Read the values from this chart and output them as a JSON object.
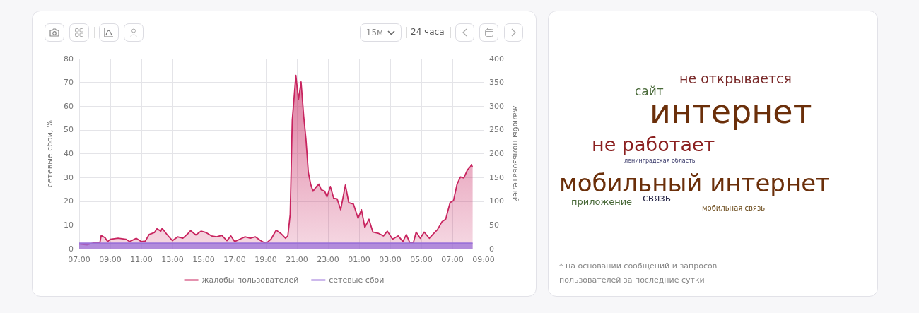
{
  "chart_data": [
    {
      "type": "area",
      "ylabel": "сетевые сбои, %",
      "y2label": "жалобы пользователей",
      "annotations": [
        "15м",
        "24 часа"
      ],
      "xlim": [
        "--01-01T07:00",
        "--01-02T09:00"
      ],
      "xticks": [
        {
          "value": "--01-01T07:00",
          "label": "07:00"
        },
        {
          "value": "--01-01T09:00",
          "label": "09:00"
        },
        {
          "value": "--01-01T11:00",
          "label": "11:00"
        },
        {
          "value": "--01-01T13:00",
          "label": "13:00"
        },
        {
          "value": "--01-01T15:00",
          "label": "15:00"
        },
        {
          "value": "--01-01T17:00",
          "label": "17:00"
        },
        {
          "value": "--01-01T19:00",
          "label": "19:00"
        },
        {
          "value": "--01-01T21:00",
          "label": "21:00"
        },
        {
          "value": "--01-01T23:00",
          "label": "23:00"
        },
        {
          "value": "--01-02T01:00",
          "label": "01:00"
        },
        {
          "value": "--01-02T03:00",
          "label": "03:00"
        },
        {
          "value": "--01-02T05:00",
          "label": "05:00"
        },
        {
          "value": "--01-02T07:00",
          "label": "07:00"
        },
        {
          "value": "--01-02T09:00",
          "label": "09:00"
        }
      ],
      "ylim": [
        0,
        80
      ],
      "yticks": [
        0,
        10,
        20,
        30,
        40,
        50,
        60,
        70,
        80
      ],
      "y2lim": [
        0,
        400
      ],
      "y2ticks": [
        0,
        50,
        100,
        150,
        200,
        250,
        300,
        350,
        400
      ],
      "grid": true,
      "legend": "bottom",
      "marker": "none",
      "line_style": "solid",
      "series": [
        {
          "name": "жалобы пользователей",
          "color": "#c8245f",
          "axis": "y2",
          "x": [
            "--01-01T07:00",
            "--01-01T07:30",
            "--01-01T08:00",
            "--01-01T08:20",
            "--01-01T08:25",
            "--01-01T08:40",
            "--01-01T08:50",
            "--01-01T09:00",
            "--01-01T09:30",
            "--01-01T10:00",
            "--01-01T10:15",
            "--01-01T10:40",
            "--01-01T11:00",
            "--01-01T11:15",
            "--01-01T11:30",
            "--01-01T11:50",
            "--01-01T12:00",
            "--01-01T12:15",
            "--01-01T12:20",
            "--01-01T12:40",
            "--01-01T13:00",
            "--01-01T13:20",
            "--01-01T13:40",
            "--01-01T14:00",
            "--01-01T14:10",
            "--01-01T14:30",
            "--01-01T14:50",
            "--01-01T15:10",
            "--01-01T15:30",
            "--01-01T15:50",
            "--01-01T16:10",
            "--01-01T16:30",
            "--01-01T16:45",
            "--01-01T17:00",
            "--01-01T17:20",
            "--01-01T17:40",
            "--01-01T18:00",
            "--01-01T18:20",
            "--01-01T18:40",
            "--01-01T19:00",
            "--01-01T19:20",
            "--01-01T19:40",
            "--01-01T19:58",
            "--01-01T20:16",
            "--01-01T20:25",
            "--01-01T20:34",
            "--01-01T20:42",
            "--01-01T20:56",
            "--01-01T21:06",
            "--01-01T21:16",
            "--01-01T21:26",
            "--01-01T21:35",
            "--01-01T21:44",
            "--01-01T21:53",
            "--01-01T22:02",
            "--01-01T22:16",
            "--01-01T22:25",
            "--01-01T22:34",
            "--01-01T22:47",
            "--01-01T22:56",
            "--01-01T23:09",
            "--01-01T23:22",
            "--01-01T23:35",
            "--01-01T23:49",
            "--01-02T00:07",
            "--01-02T00:20",
            "--01-02T00:38",
            "--01-02T00:56",
            "--01-02T01:09",
            "--01-02T01:22",
            "--01-02T01:38",
            "--01-02T01:53",
            "--01-02T02:16",
            "--01-02T02:34",
            "--01-02T02:49",
            "--01-02T03:09",
            "--01-02T03:31",
            "--01-02T03:49",
            "--01-02T04:02",
            "--01-02T04:16",
            "--01-02T04:29",
            "--01-02T04:40",
            "--01-02T04:56",
            "--01-02T05:11",
            "--01-02T05:31",
            "--01-02T05:44",
            "--01-02T06:02",
            "--01-02T06:20",
            "--01-02T06:34",
            "--01-02T06:51",
            "--01-02T07:04",
            "--01-02T07:18",
            "--01-02T07:31",
            "--01-02T07:44",
            "--01-02T07:58",
            "--01-02T08:10",
            "--01-02T08:13",
            "--01-02T08:18"
          ],
          "values": [
            10,
            8,
            13,
            13,
            28,
            23,
            15,
            20,
            22,
            20,
            15,
            22,
            15,
            16,
            30,
            34,
            42,
            37,
            43,
            29,
            17,
            25,
            22,
            32,
            38,
            29,
            37,
            34,
            27,
            25,
            28,
            17,
            27,
            15,
            20,
            25,
            22,
            25,
            17,
            11,
            20,
            39,
            32,
            22,
            27,
            72,
            270,
            365,
            314,
            351,
            280,
            230,
            161,
            136,
            121,
            131,
            136,
            124,
            121,
            109,
            131,
            106,
            105,
            82,
            134,
            97,
            94,
            64,
            82,
            45,
            62,
            35,
            32,
            27,
            37,
            20,
            27,
            15,
            30,
            12,
            12,
            35,
            22,
            35,
            22,
            30,
            40,
            57,
            62,
            97,
            101,
            136,
            151,
            149,
            166,
            173,
            177,
            171
          ]
        },
        {
          "name": "сетевые сбои",
          "color": "#9b72d8",
          "axis": "y",
          "x": [
            "--01-01T07:00",
            "--01-01T09:00",
            "--01-01T11:00",
            "--01-01T13:00",
            "--01-01T15:00",
            "--01-01T17:00",
            "--01-01T19:00",
            "--01-01T21:00",
            "--01-01T23:00",
            "--01-02T01:00",
            "--01-02T03:00",
            "--01-02T05:00",
            "--01-02T07:00",
            "--01-02T08:18"
          ],
          "values": [
            2.3,
            2.3,
            2.3,
            2.3,
            2.3,
            2.3,
            2.3,
            2.3,
            2.3,
            2.3,
            2.3,
            2.3,
            2.3,
            2.3
          ]
        }
      ]
    },
    {
      "type": "other",
      "annotations": [
        "не открывается",
        "сайт",
        "интернет",
        "не работает",
        "ленинградская область",
        "мобильный интернет",
        "приложение",
        "связь",
        "мобильная связь",
        "* на основании сообщений и запросов пользователей за последние сутки"
      ]
    }
  ]
}
